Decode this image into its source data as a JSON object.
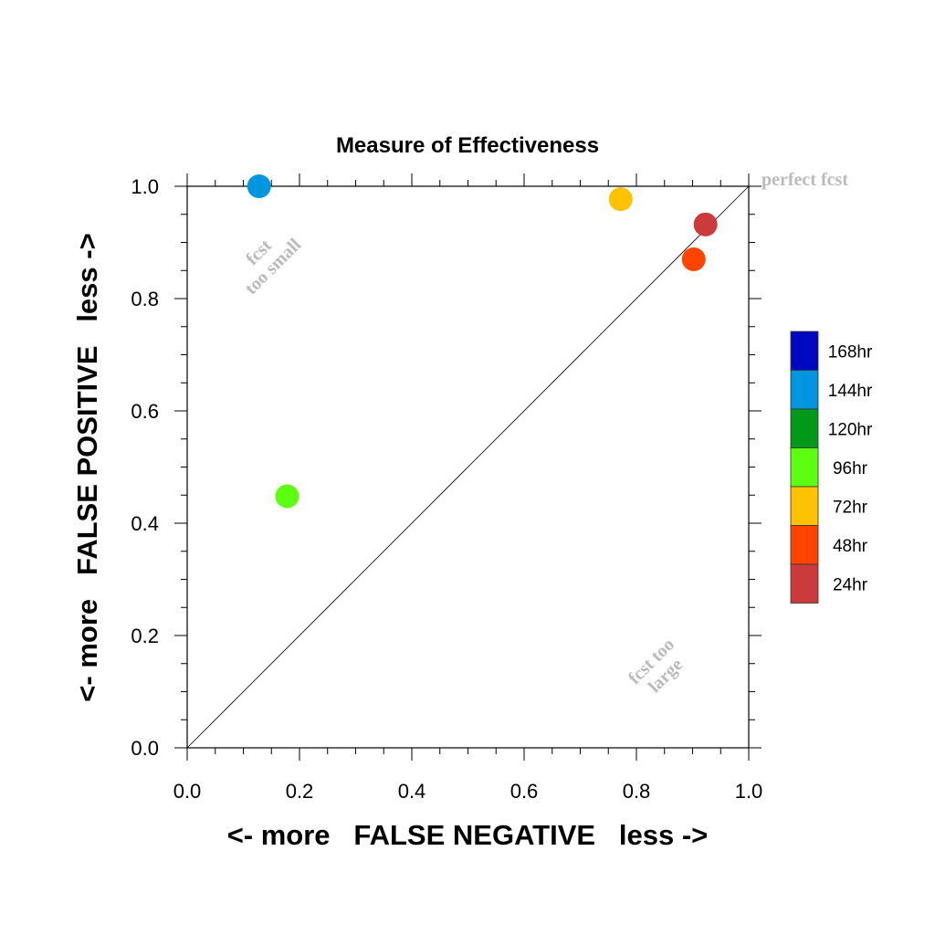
{
  "chart_data": {
    "type": "scatter",
    "title": "Measure of Effectiveness",
    "xlabel": "<- more   FALSE NEGATIVE   less ->",
    "ylabel": "<- more   FALSE POSITIVE   less ->",
    "xlim": [
      0.0,
      1.0
    ],
    "ylim": [
      0.0,
      1.0
    ],
    "xticks": [
      "0.0",
      "0.2",
      "0.4",
      "0.6",
      "0.8",
      "1.0"
    ],
    "yticks": [
      "0.0",
      "0.2",
      "0.4",
      "0.6",
      "0.8",
      "1.0"
    ],
    "grid": false,
    "diagonal_reference_line": true,
    "annotations": {
      "perfect": "perfect fcst",
      "too_small": [
        "fcst",
        "too small"
      ],
      "too_large": [
        "fcst too",
        "large"
      ]
    },
    "legend": {
      "placement": "right",
      "entries": [
        {
          "label": "168hr",
          "color": "#0008c0"
        },
        {
          "label": "144hr",
          "color": "#0096e0"
        },
        {
          "label": "120hr",
          "color": "#009a1a"
        },
        {
          "label": "96hr",
          "color": "#5cff10"
        },
        {
          "label": "72hr",
          "color": "#ffc200"
        },
        {
          "label": "48hr",
          "color": "#ff4400"
        },
        {
          "label": "24hr",
          "color": "#cc3b3b"
        }
      ]
    },
    "points": [
      {
        "series": "144hr",
        "x": 0.128,
        "y": 1.0,
        "color": "#0096e0"
      },
      {
        "series": "96hr",
        "x": 0.178,
        "y": 0.448,
        "color": "#5cff10"
      },
      {
        "series": "72hr",
        "x": 0.772,
        "y": 0.977,
        "color": "#ffc200"
      },
      {
        "series": "48hr",
        "x": 0.902,
        "y": 0.87,
        "color": "#ff4400"
      },
      {
        "series": "24hr",
        "x": 0.923,
        "y": 0.932,
        "color": "#cc3b3b"
      }
    ]
  }
}
